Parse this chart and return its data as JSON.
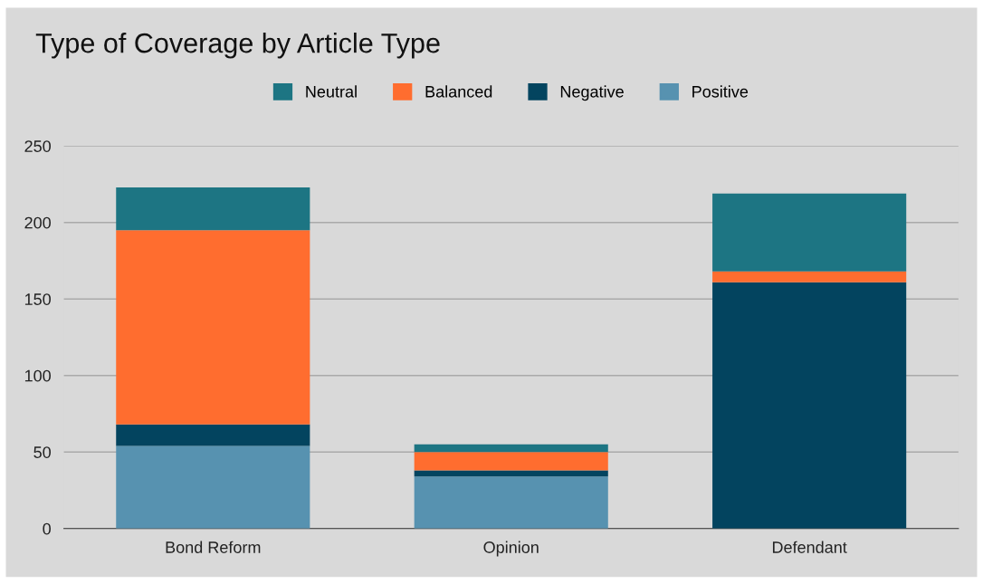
{
  "chart_data": {
    "type": "bar",
    "title": "Type of Coverage by Article Type",
    "categories": [
      "Bond Reform",
      "Opinion",
      "Defendant"
    ],
    "stacked": true,
    "ylim": [
      0,
      250
    ],
    "yticks": [
      0,
      50,
      100,
      150,
      200,
      250
    ],
    "grid": "y",
    "legend": "top",
    "series": [
      {
        "name": "Positive",
        "color": "#5792b0",
        "values": [
          54,
          34,
          0
        ]
      },
      {
        "name": "Negative",
        "color": "#03445f",
        "values": [
          14,
          4,
          161
        ]
      },
      {
        "name": "Balanced",
        "color": "#ff6d2f",
        "values": [
          127,
          12,
          7
        ]
      },
      {
        "name": "Neutral",
        "color": "#1d7583",
        "values": [
          28,
          5,
          51
        ]
      }
    ]
  }
}
